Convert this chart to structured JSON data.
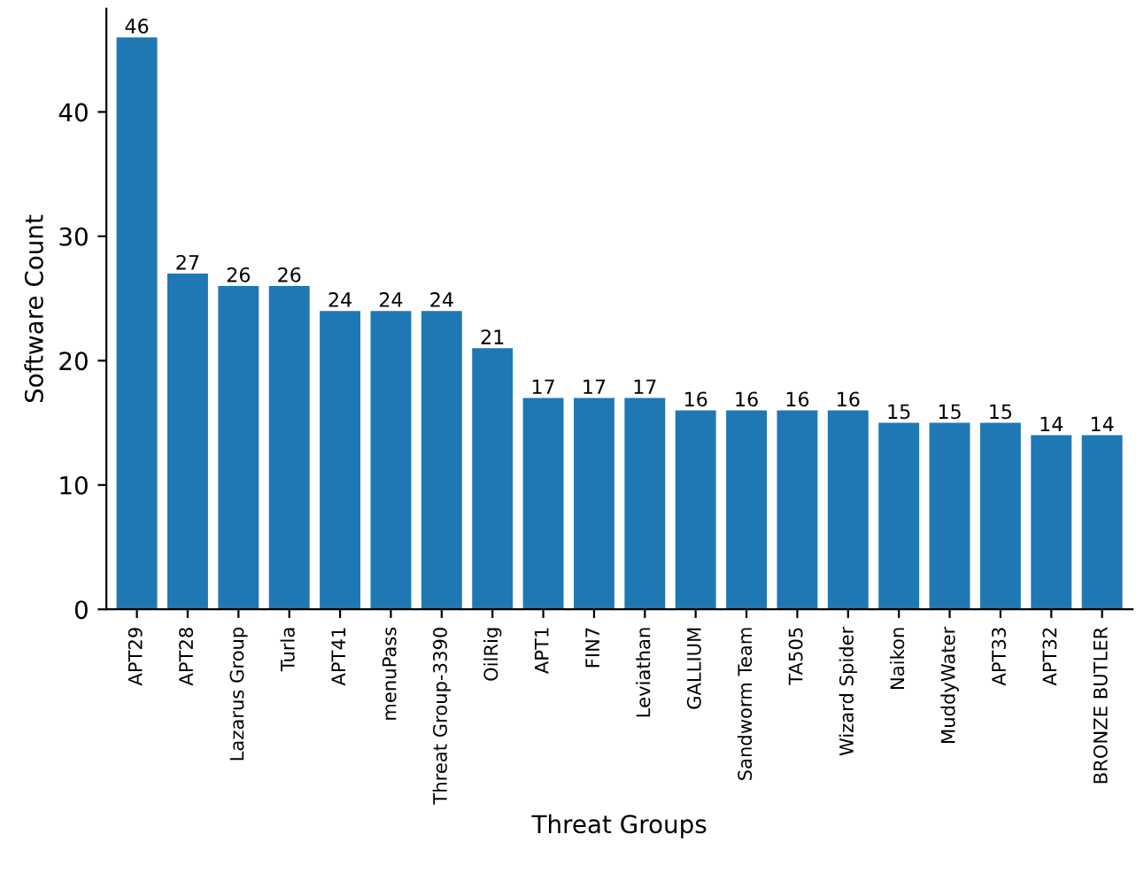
{
  "chart_data": {
    "type": "bar",
    "xlabel": "Threat Groups",
    "ylabel": "Software Count",
    "categories": [
      "APT29",
      "APT28",
      "Lazarus Group",
      "Turla",
      "APT41",
      "menuPass",
      "Threat Group-3390",
      "OilRig",
      "APT1",
      "FIN7",
      "Leviathan",
      "GALLIUM",
      "Sandworm Team",
      "TA505",
      "Wizard Spider",
      "Naikon",
      "MuddyWater",
      "APT33",
      "APT32",
      "BRONZE BUTLER"
    ],
    "values": [
      46,
      27,
      26,
      26,
      24,
      24,
      24,
      21,
      17,
      17,
      17,
      16,
      16,
      16,
      16,
      15,
      15,
      15,
      14,
      14
    ],
    "color": "#1f77b4",
    "ylim": [
      0,
      48.3
    ],
    "yticks": [
      0,
      10,
      20,
      30,
      40
    ],
    "grid": false,
    "data_labels": true
  }
}
